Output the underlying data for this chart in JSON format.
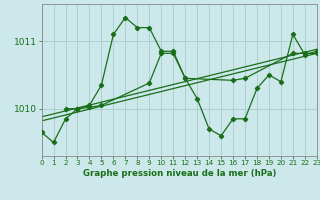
{
  "bg_color": "#cce8ea",
  "grid_color": "#aacccc",
  "line_color": "#1a6e1a",
  "x_min": 0,
  "x_max": 23,
  "y_min": 1009.3,
  "y_max": 1011.55,
  "y_ticks": [
    1010,
    1011
  ],
  "xlabel": "Graphe pression niveau de la mer (hPa)",
  "series1_x": [
    0,
    1,
    2,
    3,
    4,
    5,
    6,
    7,
    8,
    9,
    10,
    11,
    12,
    13,
    14,
    15,
    16,
    17,
    18,
    19,
    20,
    21,
    22,
    23
  ],
  "series1_y": [
    1009.65,
    1009.5,
    1009.85,
    1010.0,
    1010.05,
    1010.35,
    1011.1,
    1011.35,
    1011.2,
    1011.2,
    1010.85,
    1010.85,
    1010.45,
    1010.15,
    1009.7,
    1009.6,
    1009.85,
    1009.85,
    1010.3,
    1010.5,
    1010.4,
    1011.1,
    1010.8,
    1010.85
  ],
  "series2_x": [
    2,
    3,
    4,
    5,
    9,
    10,
    11,
    12,
    16,
    17,
    21,
    22,
    23
  ],
  "series2_y": [
    1010.0,
    1010.0,
    1010.02,
    1010.05,
    1010.38,
    1010.82,
    1010.82,
    1010.45,
    1010.42,
    1010.45,
    1010.82,
    1010.82,
    1010.82
  ],
  "trend1_x": [
    0,
    23
  ],
  "trend1_y": [
    1009.82,
    1010.82
  ],
  "trend2_x": [
    0,
    23
  ],
  "trend2_y": [
    1009.88,
    1010.88
  ]
}
